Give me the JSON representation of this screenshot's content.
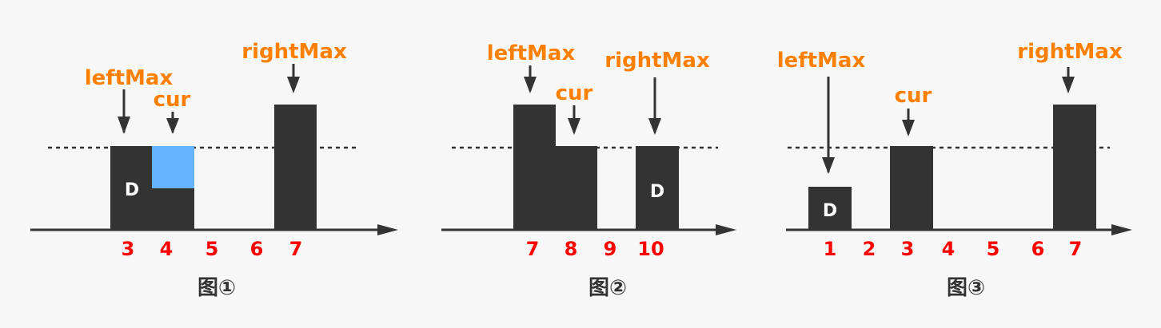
{
  "colors": {
    "bar": "#333333",
    "water": "#66b3ff",
    "pointer_label": "#ff8000",
    "index_label": "#ff0000",
    "axis": "#333333",
    "caption": "#333333"
  },
  "panels": [
    {
      "caption": "图①",
      "indices": [
        "3",
        "4",
        "5",
        "6",
        "7"
      ],
      "left_max_label": "leftMax",
      "cur_label": "cur",
      "right_max_label": "rightMax",
      "d_label": "D"
    },
    {
      "caption": "图②",
      "indices": [
        "7",
        "8",
        "9",
        "10"
      ],
      "left_max_label": "leftMax",
      "cur_label": "cur",
      "right_max_label": "rightMax",
      "d_label": "D"
    },
    {
      "caption": "图③",
      "indices": [
        "1",
        "2",
        "3",
        "4",
        "5",
        "6",
        "7"
      ],
      "left_max_label": "leftMax",
      "cur_label": "cur",
      "right_max_label": "rightMax",
      "d_label": "D"
    }
  ]
}
